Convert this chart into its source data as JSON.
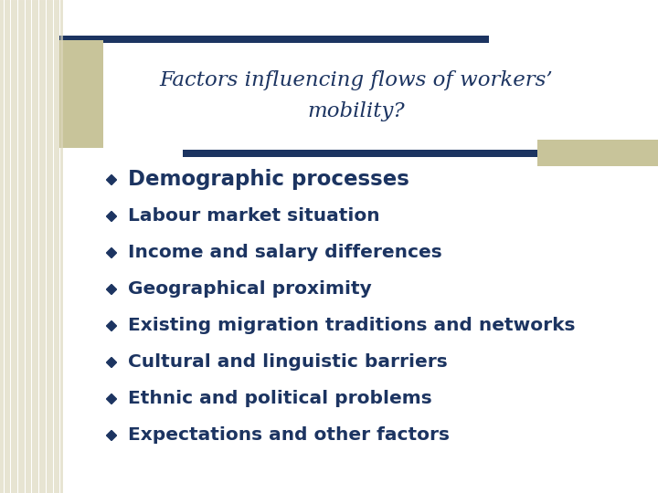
{
  "title_line1": "Factors influencing flows of workers’",
  "title_line2": "mobility?",
  "title_color": "#1c3461",
  "title_fontsize": 16.5,
  "background_color": "#ffffff",
  "bullet_items": [
    "Demographic processes",
    "Labour market situation",
    "Income and salary differences",
    "Geographical proximity",
    "Existing migration traditions and networks",
    "Cultural and linguistic barriers",
    "Ethnic and political problems",
    "Expectations and other factors"
  ],
  "bullet_bold": [
    true,
    false,
    false,
    false,
    false,
    false,
    false,
    false
  ],
  "bullet_color": "#1c3461",
  "bullet_fontsize": 14.5,
  "bold_fontsize": 16.5,
  "diamond_color": "#1c3461",
  "bar_color": "#1c3461",
  "accent_color": "#c8c49a",
  "stripe_color": "#ddd8be"
}
